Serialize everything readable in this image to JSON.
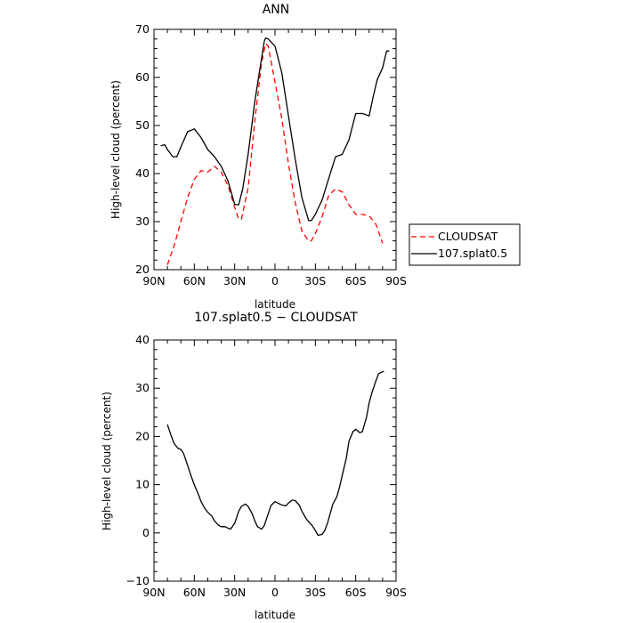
{
  "chart_data": [
    {
      "type": "line",
      "title": "ANN",
      "xlabel": "latitude",
      "ylabel": "High-level cloud (percent)",
      "xlim": [
        90,
        -90
      ],
      "ylim": [
        20,
        70
      ],
      "x_ticks": [
        90,
        60,
        30,
        0,
        -30,
        -60,
        -90
      ],
      "x_tick_labels": [
        "90N",
        "60N",
        "30N",
        "0",
        "30S",
        "60S",
        "90S"
      ],
      "y_ticks": [
        20,
        30,
        40,
        50,
        60,
        70
      ],
      "y_tick_labels": [
        "20",
        "30",
        "40",
        "50",
        "60",
        "70"
      ],
      "grid": false,
      "legend": "right",
      "series": [
        {
          "name": "CLOUDSAT",
          "color": "#ff0000",
          "style": "dashed",
          "x": [
            80,
            75,
            70,
            65,
            60,
            55,
            50,
            45,
            40,
            35,
            30,
            27,
            25,
            20,
            15,
            10,
            7,
            5,
            0,
            -5,
            -10,
            -15,
            -20,
            -25,
            -27,
            -30,
            -35,
            -40,
            -45,
            -50,
            -55,
            -60,
            -65,
            -70,
            -75,
            -80
          ],
          "y": [
            21,
            25,
            30,
            35,
            38.8,
            40.6,
            40.3,
            41.5,
            40.3,
            37.5,
            33,
            30.5,
            30.5,
            37,
            51,
            63,
            67,
            66.5,
            59,
            51.5,
            42,
            34,
            28,
            26,
            26,
            27.5,
            31,
            35.5,
            36.8,
            36.2,
            33.5,
            31.5,
            31.5,
            31.2,
            29.5,
            25.5
          ]
        },
        {
          "name": "107.splat0.5",
          "color": "#000000",
          "style": "solid",
          "x": [
            85,
            82,
            80,
            76,
            73,
            70,
            65,
            60,
            55,
            50,
            45,
            40,
            35,
            30,
            27,
            24,
            20,
            15,
            10,
            8,
            7,
            5,
            0,
            -5,
            -10,
            -15,
            -20,
            -25,
            -27,
            -30,
            -35,
            -40,
            -45,
            -50,
            -55,
            -60,
            -65,
            -70,
            -73,
            -76,
            -80,
            -83,
            -85
          ],
          "y": [
            45.8,
            46,
            45,
            43.5,
            43.5,
            45.5,
            48.7,
            49.3,
            47.5,
            45,
            43.5,
            41.5,
            38.5,
            33.6,
            33.5,
            36.8,
            44,
            55,
            64,
            67.5,
            68.2,
            68,
            66.5,
            61,
            52,
            43,
            35,
            30.2,
            30.2,
            31.5,
            34.5,
            39,
            43.5,
            44,
            47,
            52.5,
            52.5,
            52,
            56,
            59.5,
            62,
            65.5,
            65.5
          ]
        }
      ]
    },
    {
      "type": "line",
      "title": "107.splat0.5 − CLOUDSAT",
      "xlabel": "latitude",
      "ylabel": "High-level cloud (percent)",
      "xlim": [
        90,
        -90
      ],
      "ylim": [
        -10,
        40
      ],
      "x_ticks": [
        90,
        60,
        30,
        0,
        -30,
        -60,
        -90
      ],
      "x_tick_labels": [
        "90N",
        "60N",
        "30N",
        "0",
        "30S",
        "60S",
        "90S"
      ],
      "y_ticks": [
        -10,
        0,
        10,
        20,
        30,
        40
      ],
      "y_tick_labels": [
        "−10",
        "0",
        "10",
        "20",
        "30",
        "40"
      ],
      "grid": false,
      "series": [
        {
          "color": "#000000",
          "style": "solid",
          "x": [
            80,
            77,
            75,
            72,
            70,
            68,
            65,
            62,
            60,
            57,
            55,
            52,
            50,
            47,
            45,
            42,
            40,
            37,
            35,
            33,
            30,
            27,
            25,
            22,
            20,
            17,
            15,
            13,
            10,
            8,
            5,
            3,
            0,
            -2,
            -5,
            -8,
            -10,
            -13,
            -15,
            -18,
            -20,
            -23,
            -25,
            -28,
            -30,
            -32,
            -35,
            -37,
            -39,
            -41,
            -43,
            -46,
            -48,
            -50,
            -53,
            -55,
            -58,
            -60,
            -63,
            -65,
            -68,
            -70,
            -72,
            -75,
            -77,
            -79,
            -81
          ],
          "y": [
            22.5,
            20,
            18.5,
            17.5,
            17.3,
            16.5,
            14,
            11.5,
            10,
            8,
            6.5,
            5,
            4.3,
            3.5,
            2.5,
            1.6,
            1.3,
            1.3,
            1,
            0.8,
            2,
            4.5,
            5.5,
            6,
            5.5,
            4,
            2.5,
            1.3,
            0.8,
            1.5,
            4,
            5.7,
            6.5,
            6.2,
            5.8,
            5.6,
            6.2,
            6.8,
            6.7,
            5.8,
            4.5,
            3,
            2.3,
            1.4,
            0.5,
            -0.5,
            -0.3,
            0.5,
            2,
            4,
            6,
            7.5,
            9.5,
            12,
            15.5,
            19,
            21,
            21.5,
            20.8,
            21,
            24,
            27,
            29,
            31.5,
            33,
            33.3,
            33.5
          ]
        }
      ]
    }
  ]
}
